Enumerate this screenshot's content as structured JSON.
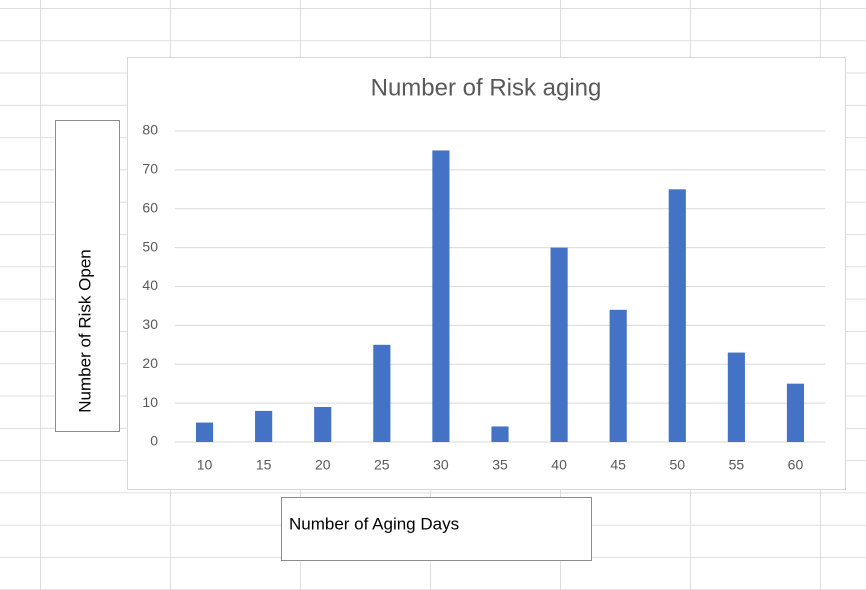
{
  "chart_data": {
    "type": "bar",
    "title": "Number of Risk aging",
    "x_label": "Number of Aging Days",
    "y_label": "Number of Risk Open",
    "categories": [
      "10",
      "15",
      "20",
      "25",
      "30",
      "35",
      "40",
      "45",
      "50",
      "55",
      "60"
    ],
    "values": [
      5,
      8,
      9,
      25,
      75,
      4,
      50,
      34,
      65,
      23,
      15
    ],
    "color": "#4472c4",
    "ylim": [
      0,
      80
    ],
    "yticks": [
      0,
      10,
      20,
      30,
      40,
      50,
      60,
      70,
      80
    ],
    "grid": true
  }
}
